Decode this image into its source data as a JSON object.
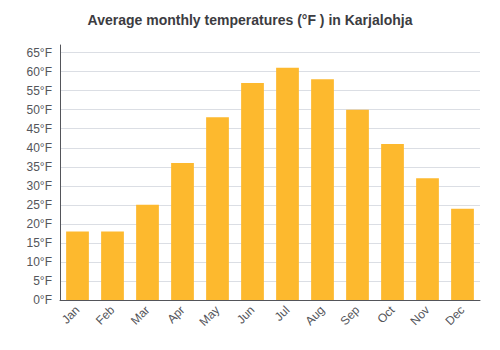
{
  "chart_data": {
    "type": "bar",
    "title": "Average monthly temperatures (°F ) in Karjalohja",
    "categories": [
      "Jan",
      "Feb",
      "Mar",
      "Apr",
      "May",
      "Jun",
      "Jul",
      "Aug",
      "Sep",
      "Oct",
      "Nov",
      "Dec"
    ],
    "values": [
      18,
      18,
      25,
      36,
      48,
      57,
      61,
      58,
      50,
      41,
      32,
      24
    ],
    "color": "#FDB92E",
    "ylim": [
      0,
      67
    ],
    "yticks": [
      {
        "value": 0,
        "label": "0°F"
      },
      {
        "value": 5,
        "label": "5°F"
      },
      {
        "value": 10,
        "label": "10°F"
      },
      {
        "value": 15,
        "label": "15°F"
      },
      {
        "value": 20,
        "label": "20°F"
      },
      {
        "value": 25,
        "label": "25°F"
      },
      {
        "value": 30,
        "label": "30°F"
      },
      {
        "value": 35,
        "label": "35°F"
      },
      {
        "value": 40,
        "label": "40°F"
      },
      {
        "value": 45,
        "label": "45°F"
      },
      {
        "value": 50,
        "label": "50°F"
      },
      {
        "value": 55,
        "label": "55°F"
      },
      {
        "value": 60,
        "label": "60°F"
      },
      {
        "value": 65,
        "label": "65°F"
      }
    ],
    "grid": true
  }
}
